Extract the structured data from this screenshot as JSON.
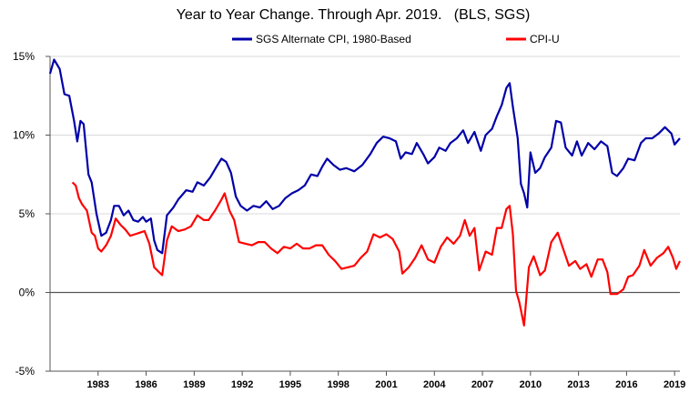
{
  "chart_data": {
    "type": "line",
    "title": "Year to Year Change. Through Apr. 2019.   (BLS, SGS)",
    "xlabel": "",
    "ylabel": "",
    "ylim": [
      -5,
      15
    ],
    "xlim": [
      1980.0,
      2019.33
    ],
    "y_ticks": [
      15,
      10,
      5,
      0,
      -5
    ],
    "y_tick_labels": [
      "15%",
      "10%",
      "5%",
      "0%",
      "-5%"
    ],
    "x_ticks": [
      1983,
      1986,
      1989,
      1992,
      1995,
      1998,
      2001,
      2004,
      2007,
      2010,
      2013,
      2016,
      2019
    ],
    "x_tick_labels": [
      "1983",
      "1986",
      "1989",
      "1992",
      "1995",
      "1998",
      "2001",
      "2004",
      "2007",
      "2010",
      "2013",
      "2016",
      "2019"
    ],
    "grid": true,
    "legend_position": "top",
    "series": [
      {
        "name": "SGS Alternate CPI, 1980-Based",
        "color": "#0000a8",
        "points": [
          [
            1980.0,
            13.9
          ],
          [
            1980.25,
            14.8
          ],
          [
            1980.6,
            14.2
          ],
          [
            1980.9,
            12.6
          ],
          [
            1981.2,
            12.5
          ],
          [
            1981.5,
            10.9
          ],
          [
            1981.7,
            9.6
          ],
          [
            1981.9,
            10.9
          ],
          [
            1982.1,
            10.7
          ],
          [
            1982.4,
            7.5
          ],
          [
            1982.6,
            7.0
          ],
          [
            1982.9,
            5.0
          ],
          [
            1983.2,
            3.6
          ],
          [
            1983.5,
            3.8
          ],
          [
            1983.8,
            4.6
          ],
          [
            1984.0,
            5.5
          ],
          [
            1984.3,
            5.5
          ],
          [
            1984.6,
            4.9
          ],
          [
            1984.9,
            5.2
          ],
          [
            1985.2,
            4.6
          ],
          [
            1985.5,
            4.5
          ],
          [
            1985.8,
            4.8
          ],
          [
            1986.0,
            4.5
          ],
          [
            1986.3,
            4.7
          ],
          [
            1986.5,
            3.3
          ],
          [
            1986.7,
            2.7
          ],
          [
            1987.0,
            2.5
          ],
          [
            1987.3,
            4.9
          ],
          [
            1987.7,
            5.4
          ],
          [
            1988.0,
            5.9
          ],
          [
            1988.5,
            6.5
          ],
          [
            1988.9,
            6.4
          ],
          [
            1989.2,
            7.0
          ],
          [
            1989.6,
            6.8
          ],
          [
            1990.0,
            7.3
          ],
          [
            1990.4,
            8.0
          ],
          [
            1990.7,
            8.5
          ],
          [
            1991.0,
            8.3
          ],
          [
            1991.3,
            7.6
          ],
          [
            1991.6,
            6.1
          ],
          [
            1991.9,
            5.5
          ],
          [
            1992.3,
            5.2
          ],
          [
            1992.7,
            5.5
          ],
          [
            1993.1,
            5.4
          ],
          [
            1993.5,
            5.8
          ],
          [
            1993.9,
            5.3
          ],
          [
            1994.3,
            5.5
          ],
          [
            1994.7,
            6.0
          ],
          [
            1995.1,
            6.3
          ],
          [
            1995.5,
            6.5
          ],
          [
            1995.9,
            6.8
          ],
          [
            1996.3,
            7.5
          ],
          [
            1996.7,
            7.4
          ],
          [
            1997.0,
            8.0
          ],
          [
            1997.3,
            8.5
          ],
          [
            1997.7,
            8.1
          ],
          [
            1998.1,
            7.8
          ],
          [
            1998.5,
            7.9
          ],
          [
            1999.0,
            7.7
          ],
          [
            1999.5,
            8.1
          ],
          [
            2000.0,
            8.8
          ],
          [
            2000.4,
            9.5
          ],
          [
            2000.8,
            9.9
          ],
          [
            2001.2,
            9.8
          ],
          [
            2001.6,
            9.6
          ],
          [
            2001.9,
            8.5
          ],
          [
            2002.2,
            8.9
          ],
          [
            2002.6,
            8.8
          ],
          [
            2002.9,
            9.5
          ],
          [
            2003.3,
            8.8
          ],
          [
            2003.6,
            8.2
          ],
          [
            2004.0,
            8.6
          ],
          [
            2004.3,
            9.2
          ],
          [
            2004.7,
            9.0
          ],
          [
            2005.0,
            9.5
          ],
          [
            2005.4,
            9.8
          ],
          [
            2005.8,
            10.3
          ],
          [
            2006.1,
            9.5
          ],
          [
            2006.5,
            10.2
          ],
          [
            2006.9,
            9.0
          ],
          [
            2007.2,
            10.0
          ],
          [
            2007.6,
            10.4
          ],
          [
            2007.9,
            11.2
          ],
          [
            2008.2,
            11.9
          ],
          [
            2008.5,
            13.0
          ],
          [
            2008.7,
            13.3
          ],
          [
            2008.9,
            11.8
          ],
          [
            2009.2,
            9.8
          ],
          [
            2009.4,
            6.9
          ],
          [
            2009.6,
            6.3
          ],
          [
            2009.8,
            5.4
          ],
          [
            2010.0,
            8.9
          ],
          [
            2010.3,
            7.6
          ],
          [
            2010.6,
            7.9
          ],
          [
            2010.9,
            8.6
          ],
          [
            2011.3,
            9.2
          ],
          [
            2011.6,
            10.9
          ],
          [
            2011.9,
            10.8
          ],
          [
            2012.2,
            9.2
          ],
          [
            2012.6,
            8.7
          ],
          [
            2012.9,
            9.6
          ],
          [
            2013.2,
            8.7
          ],
          [
            2013.6,
            9.5
          ],
          [
            2014.0,
            9.1
          ],
          [
            2014.4,
            9.6
          ],
          [
            2014.8,
            9.3
          ],
          [
            2015.1,
            7.6
          ],
          [
            2015.4,
            7.4
          ],
          [
            2015.8,
            7.9
          ],
          [
            2016.1,
            8.5
          ],
          [
            2016.5,
            8.4
          ],
          [
            2016.9,
            9.5
          ],
          [
            2017.2,
            9.8
          ],
          [
            2017.6,
            9.8
          ],
          [
            2018.0,
            10.1
          ],
          [
            2018.4,
            10.5
          ],
          [
            2018.8,
            10.1
          ],
          [
            2019.0,
            9.4
          ],
          [
            2019.33,
            9.8
          ]
        ]
      },
      {
        "name": "CPI-U",
        "color": "#ff0000",
        "points": [
          [
            1981.4,
            7.0
          ],
          [
            1981.6,
            6.8
          ],
          [
            1981.8,
            6.0
          ],
          [
            1982.0,
            5.6
          ],
          [
            1982.3,
            5.2
          ],
          [
            1982.6,
            3.8
          ],
          [
            1982.8,
            3.6
          ],
          [
            1983.0,
            2.8
          ],
          [
            1983.2,
            2.6
          ],
          [
            1983.5,
            3.0
          ],
          [
            1983.8,
            3.6
          ],
          [
            1984.1,
            4.7
          ],
          [
            1984.4,
            4.3
          ],
          [
            1984.7,
            4.0
          ],
          [
            1985.0,
            3.6
          ],
          [
            1985.3,
            3.7
          ],
          [
            1985.6,
            3.8
          ],
          [
            1985.9,
            3.9
          ],
          [
            1986.2,
            3.1
          ],
          [
            1986.5,
            1.6
          ],
          [
            1986.8,
            1.3
          ],
          [
            1987.0,
            1.1
          ],
          [
            1987.3,
            3.3
          ],
          [
            1987.6,
            4.2
          ],
          [
            1988.0,
            3.9
          ],
          [
            1988.4,
            4.0
          ],
          [
            1988.8,
            4.2
          ],
          [
            1989.2,
            4.9
          ],
          [
            1989.6,
            4.6
          ],
          [
            1989.9,
            4.6
          ],
          [
            1990.3,
            5.2
          ],
          [
            1990.7,
            5.9
          ],
          [
            1990.9,
            6.3
          ],
          [
            1991.2,
            5.2
          ],
          [
            1991.5,
            4.6
          ],
          [
            1991.8,
            3.2
          ],
          [
            1992.2,
            3.1
          ],
          [
            1992.6,
            3.0
          ],
          [
            1993.0,
            3.2
          ],
          [
            1993.4,
            3.2
          ],
          [
            1993.8,
            2.8
          ],
          [
            1994.2,
            2.5
          ],
          [
            1994.6,
            2.9
          ],
          [
            1995.0,
            2.8
          ],
          [
            1995.4,
            3.1
          ],
          [
            1995.8,
            2.8
          ],
          [
            1996.2,
            2.8
          ],
          [
            1996.6,
            3.0
          ],
          [
            1997.0,
            3.0
          ],
          [
            1997.4,
            2.4
          ],
          [
            1997.8,
            2.0
          ],
          [
            1998.2,
            1.5
          ],
          [
            1998.6,
            1.6
          ],
          [
            1999.0,
            1.7
          ],
          [
            1999.4,
            2.2
          ],
          [
            1999.8,
            2.6
          ],
          [
            2000.2,
            3.7
          ],
          [
            2000.6,
            3.5
          ],
          [
            2001.0,
            3.7
          ],
          [
            2001.4,
            3.4
          ],
          [
            2001.8,
            2.6
          ],
          [
            2002.0,
            1.2
          ],
          [
            2002.4,
            1.6
          ],
          [
            2002.8,
            2.2
          ],
          [
            2003.2,
            3.0
          ],
          [
            2003.6,
            2.1
          ],
          [
            2004.0,
            1.9
          ],
          [
            2004.4,
            2.9
          ],
          [
            2004.8,
            3.5
          ],
          [
            2005.2,
            3.1
          ],
          [
            2005.6,
            3.6
          ],
          [
            2005.9,
            4.6
          ],
          [
            2006.2,
            3.6
          ],
          [
            2006.5,
            4.1
          ],
          [
            2006.8,
            1.4
          ],
          [
            2007.2,
            2.6
          ],
          [
            2007.6,
            2.4
          ],
          [
            2007.9,
            4.1
          ],
          [
            2008.2,
            4.1
          ],
          [
            2008.5,
            5.3
          ],
          [
            2008.7,
            5.5
          ],
          [
            2008.9,
            3.7
          ],
          [
            2009.1,
            0.1
          ],
          [
            2009.3,
            -0.6
          ],
          [
            2009.6,
            -2.1
          ],
          [
            2009.9,
            1.6
          ],
          [
            2010.2,
            2.3
          ],
          [
            2010.6,
            1.1
          ],
          [
            2010.9,
            1.4
          ],
          [
            2011.3,
            3.2
          ],
          [
            2011.7,
            3.8
          ],
          [
            2012.0,
            2.9
          ],
          [
            2012.4,
            1.7
          ],
          [
            2012.8,
            2.0
          ],
          [
            2013.1,
            1.5
          ],
          [
            2013.5,
            1.8
          ],
          [
            2013.8,
            1.0
          ],
          [
            2014.2,
            2.1
          ],
          [
            2014.5,
            2.1
          ],
          [
            2014.8,
            1.3
          ],
          [
            2015.0,
            -0.1
          ],
          [
            2015.4,
            -0.1
          ],
          [
            2015.8,
            0.2
          ],
          [
            2016.1,
            1.0
          ],
          [
            2016.4,
            1.1
          ],
          [
            2016.8,
            1.7
          ],
          [
            2017.1,
            2.7
          ],
          [
            2017.5,
            1.7
          ],
          [
            2017.9,
            2.2
          ],
          [
            2018.3,
            2.5
          ],
          [
            2018.6,
            2.9
          ],
          [
            2018.9,
            2.2
          ],
          [
            2019.1,
            1.5
          ],
          [
            2019.33,
            2.0
          ]
        ]
      }
    ]
  }
}
